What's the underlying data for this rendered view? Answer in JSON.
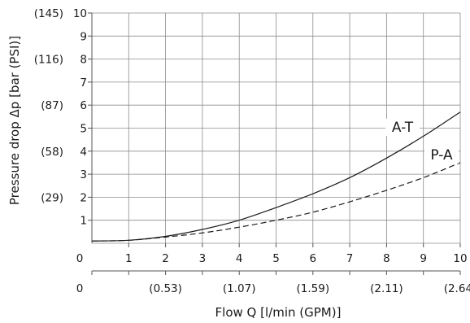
{
  "chart_data": {
    "type": "line",
    "title": "",
    "xlabel": "Flow Q [l/min (GPM)]",
    "ylabel": "Pressure drop Δp [bar (PSI)]",
    "xlim": [
      0,
      10
    ],
    "ylim": [
      0,
      10
    ],
    "grid": true,
    "x_ticks": [
      "0",
      "1",
      "2",
      "3",
      "4",
      "5",
      "6",
      "7",
      "8",
      "9",
      "10"
    ],
    "y_ticks": [
      "1",
      "2",
      "3",
      "4",
      "5",
      "6",
      "7",
      "8",
      "9",
      "10"
    ],
    "x_secondary_ticks": [
      {
        "x": 0,
        "label": "0"
      },
      {
        "x": 2,
        "label": "(0.53)"
      },
      {
        "x": 4,
        "label": "(1.07)"
      },
      {
        "x": 6,
        "label": "(1.59)"
      },
      {
        "x": 8,
        "label": "(2.11)"
      },
      {
        "x": 10,
        "label": "(2.64)"
      }
    ],
    "y_secondary_ticks": [
      {
        "y": 2,
        "label": "(29)"
      },
      {
        "y": 4,
        "label": "(58)"
      },
      {
        "y": 6,
        "label": "(87)"
      },
      {
        "y": 8,
        "label": "(116)"
      },
      {
        "y": 10,
        "label": "(145)"
      }
    ],
    "series": [
      {
        "name": "A-T",
        "style": "solid",
        "x": [
          0,
          1,
          2,
          3,
          4,
          5,
          6,
          7,
          8,
          9,
          10
        ],
        "values": [
          0.1,
          0.13,
          0.3,
          0.6,
          1.0,
          1.55,
          2.15,
          2.85,
          3.7,
          4.65,
          5.7
        ]
      },
      {
        "name": "P-A",
        "style": "dashed",
        "x": [
          0,
          1,
          2,
          3,
          4,
          5,
          6,
          7,
          8,
          9,
          10
        ],
        "values": [
          0.1,
          0.13,
          0.27,
          0.45,
          0.7,
          1.0,
          1.35,
          1.8,
          2.3,
          2.85,
          3.5
        ]
      }
    ]
  }
}
